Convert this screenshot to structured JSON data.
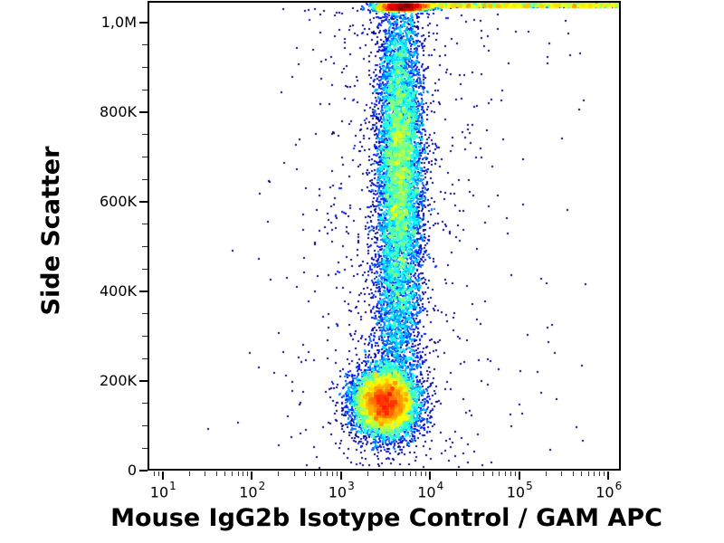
{
  "page": {
    "background": "#ffffff",
    "axis_color": "#000000"
  },
  "chart_data": {
    "type": "scatter",
    "subtype": "flow_cytometry_pseudocolor_density_dot_plot",
    "title": "",
    "xlabel": "Mouse IgG2b Isotype Control / GAM APC",
    "ylabel": "Side Scatter",
    "x_scale": "log10",
    "x_log10_range": [
      0.85,
      6.14
    ],
    "y_range": [
      0,
      1046000
    ],
    "grid": false,
    "legend": "none",
    "x_ticks": [
      {
        "base": "10",
        "exp": "1",
        "value": 10
      },
      {
        "base": "10",
        "exp": "2",
        "value": 100
      },
      {
        "base": "10",
        "exp": "3",
        "value": 1000
      },
      {
        "base": "10",
        "exp": "4",
        "value": 10000
      },
      {
        "base": "10",
        "exp": "5",
        "value": 100000
      },
      {
        "base": "10",
        "exp": "6",
        "value": 1000000
      }
    ],
    "x_minor_digits": [
      2,
      3,
      4,
      5,
      6,
      7,
      8,
      9
    ],
    "y_ticks": [
      {
        "label": "0",
        "value": 0
      },
      {
        "label": "200K",
        "value": 200000
      },
      {
        "label": "400K",
        "value": 400000
      },
      {
        "label": "600K",
        "value": 600000
      },
      {
        "label": "800K",
        "value": 800000
      },
      {
        "label": "1,0M",
        "value": 1000000
      }
    ],
    "y_minor_step": 50000,
    "colormap": "jet_density",
    "colormap_note": "pseudocolor event density: navy = single events, blue/cyan = low, green = mid, yellow/orange = high, red/dark red = maximum",
    "dot_size_px": 2,
    "populations": [
      {
        "name": "lymphocytes_debris_blob",
        "count": 9000,
        "x": {
          "dist": "lognormal",
          "log10_mean": 3.5,
          "log10_sd": 0.17
        },
        "y": {
          "dist": "normal",
          "mean": 152000,
          "sd": 36000
        }
      },
      {
        "name": "granulocytes_column",
        "count": 8500,
        "x": {
          "dist": "lognormal",
          "log10_mean": 3.66,
          "log10_sd": 0.13
        },
        "y": {
          "dist": "normal",
          "mean": 690000,
          "sd": 190000
        }
      },
      {
        "name": "monocytes_bridge",
        "count": 1100,
        "x": {
          "dist": "lognormal",
          "log10_mean": 3.62,
          "log10_sd": 0.14
        },
        "y": {
          "dist": "normal",
          "mean": 330000,
          "sd": 90000
        }
      },
      {
        "name": "scattered_background",
        "count": 900,
        "x": {
          "dist": "lognormal",
          "log10_mean": 3.55,
          "log10_sd": 0.55
        },
        "y": {
          "dist": "uniform",
          "min": 5000,
          "max": 1040000
        }
      },
      {
        "name": "far_right_rare_events",
        "count": 45,
        "x": {
          "dist": "loguniform",
          "log10_min": 4.2,
          "log10_max": 5.9
        },
        "y": {
          "dist": "uniform",
          "min": 30000,
          "max": 1020000
        }
      },
      {
        "name": "ssc_saturated_top_core",
        "count": 2600,
        "x": {
          "dist": "lognormal",
          "log10_mean": 3.68,
          "log10_sd": 0.14
        },
        "y": {
          "dist": "uniform",
          "min": 1026000,
          "max": 1043000
        }
      },
      {
        "name": "ssc_saturated_top_tail",
        "count": 2200,
        "x": {
          "dist": "loguniform",
          "log10_min": 3.7,
          "log10_max": 6.12
        },
        "y": {
          "dist": "uniform",
          "min": 1033000,
          "max": 1043000
        }
      }
    ]
  }
}
